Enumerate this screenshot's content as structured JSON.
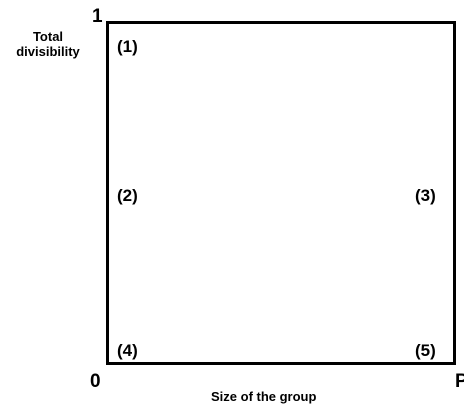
{
  "y_axis": {
    "title_line1": "Total",
    "title_line2": "divisibility",
    "max_label": "1"
  },
  "x_axis": {
    "title": "Size of the group",
    "min_label": "0",
    "max_label": "P"
  },
  "regions": [
    "(1)",
    "(2)",
    "(3)",
    "(4)",
    "(5)"
  ],
  "colors": {
    "line": "#000000",
    "background": "#ffffff"
  }
}
